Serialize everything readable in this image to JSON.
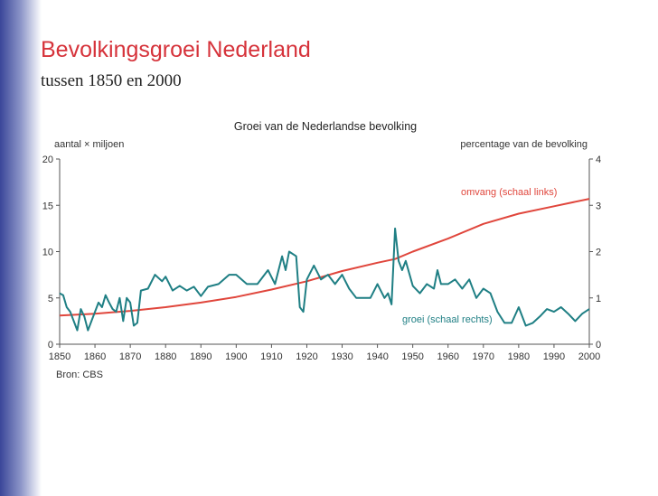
{
  "slide": {
    "title": "Bevolkingsgroei Nederland",
    "subtitle": "tussen 1850 en 2000"
  },
  "chart_data": {
    "type": "line",
    "title": "Groei van de Nederlandse bevolking",
    "y_label": "aantal × miljoen",
    "y2_label": "percentage van de bevolking",
    "source": "Bron: CBS",
    "xlim": [
      1850,
      2000
    ],
    "xticks": [
      1850,
      1860,
      1870,
      1880,
      1890,
      1900,
      1910,
      1920,
      1930,
      1940,
      1950,
      1960,
      1970,
      1980,
      1990,
      2000
    ],
    "ylim": [
      0,
      20
    ],
    "yticks": [
      0,
      5,
      10,
      15,
      20
    ],
    "y2lim": [
      0,
      4
    ],
    "y2ticks": [
      0,
      1,
      2,
      3,
      4
    ],
    "series": [
      {
        "name": "omvang (schaal links)",
        "color": "#e0463c",
        "x": [
          1850,
          1860,
          1870,
          1880,
          1890,
          1900,
          1910,
          1920,
          1930,
          1940,
          1945,
          1950,
          1960,
          1970,
          1980,
          1990,
          2000
        ],
        "values": [
          3.1,
          3.3,
          3.6,
          4.0,
          4.5,
          5.1,
          5.9,
          6.8,
          7.9,
          8.8,
          9.2,
          10.0,
          11.4,
          13.0,
          14.1,
          14.9,
          15.7
        ]
      },
      {
        "name": "groei (schaal rechts)",
        "color": "#1f7f84",
        "axis": "y2",
        "x": [
          1850,
          1851,
          1852,
          1853,
          1854,
          1855,
          1856,
          1857,
          1858,
          1859,
          1861,
          1862,
          1863,
          1864,
          1865,
          1866,
          1867,
          1868,
          1869,
          1870,
          1871,
          1872,
          1873,
          1875,
          1877,
          1879,
          1880,
          1882,
          1884,
          1886,
          1888,
          1890,
          1892,
          1895,
          1898,
          1900,
          1903,
          1906,
          1909,
          1911,
          1913,
          1914,
          1915,
          1917,
          1918,
          1919,
          1920,
          1922,
          1924,
          1926,
          1928,
          1930,
          1932,
          1934,
          1936,
          1938,
          1940,
          1942,
          1943,
          1944,
          1945,
          1946,
          1947,
          1948,
          1950,
          1952,
          1954,
          1956,
          1957,
          1958,
          1960,
          1962,
          1964,
          1966,
          1968,
          1970,
          1972,
          1974,
          1976,
          1978,
          1980,
          1982,
          1984,
          1986,
          1988,
          1990,
          1992,
          1994,
          1996,
          1998,
          2000
        ],
        "values": [
          1.1,
          1.06,
          0.8,
          0.7,
          0.5,
          0.3,
          0.76,
          0.6,
          0.3,
          0.5,
          0.9,
          0.8,
          1.06,
          0.9,
          0.76,
          0.7,
          1.0,
          0.5,
          1.0,
          0.9,
          0.4,
          0.46,
          1.16,
          1.2,
          1.5,
          1.36,
          1.46,
          1.16,
          1.26,
          1.16,
          1.24,
          1.04,
          1.24,
          1.3,
          1.5,
          1.5,
          1.3,
          1.3,
          1.6,
          1.3,
          1.9,
          1.6,
          2.0,
          1.9,
          0.8,
          0.7,
          1.4,
          1.7,
          1.4,
          1.5,
          1.3,
          1.5,
          1.2,
          1.0,
          1.0,
          1.0,
          1.3,
          1.0,
          1.1,
          0.86,
          2.5,
          1.8,
          1.6,
          1.8,
          1.26,
          1.1,
          1.3,
          1.2,
          1.6,
          1.3,
          1.3,
          1.4,
          1.2,
          1.4,
          1.0,
          1.2,
          1.1,
          0.7,
          0.46,
          0.46,
          0.8,
          0.4,
          0.46,
          0.6,
          0.76,
          0.7,
          0.8,
          0.66,
          0.5,
          0.66,
          0.76
        ]
      }
    ]
  }
}
